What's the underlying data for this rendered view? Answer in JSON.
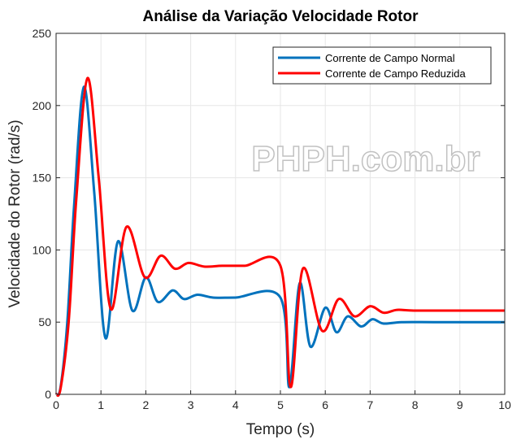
{
  "chart_data": {
    "type": "line",
    "title": "Análise da Variação Velocidade Rotor",
    "xlabel": "Tempo (s)",
    "ylabel": "Velocidade do Rotor (rad/s)",
    "xlim": [
      0,
      10
    ],
    "ylim": [
      0,
      250
    ],
    "xticks": [
      0,
      1,
      2,
      3,
      4,
      5,
      6,
      7,
      8,
      9,
      10
    ],
    "yticks": [
      0,
      50,
      100,
      150,
      200,
      250
    ],
    "grid": true,
    "legend_position": "top-right",
    "watermark": "PHPH.com.br",
    "series": [
      {
        "name": "Corrente de Campo Normal",
        "color": "#0072BD",
        "x": [
          0,
          0.1,
          0.25,
          0.4,
          0.62,
          0.85,
          1.1,
          1.38,
          1.7,
          2.0,
          2.27,
          2.6,
          2.85,
          3.15,
          3.5,
          4.0,
          5.0,
          5.2,
          5.43,
          5.67,
          6.0,
          6.25,
          6.5,
          6.8,
          7.05,
          7.3,
          7.7,
          8.5,
          10
        ],
        "y": [
          0,
          5,
          50,
          130,
          213,
          140,
          39,
          106,
          58,
          81,
          64,
          72,
          66,
          69,
          67,
          67,
          67,
          5,
          77,
          33,
          60,
          43,
          54,
          47,
          52,
          49,
          50,
          50,
          50
        ]
      },
      {
        "name": "Corrente de Campo Reduzida",
        "color": "#FF0000",
        "x": [
          0,
          0.1,
          0.28,
          0.45,
          0.7,
          0.95,
          1.22,
          1.57,
          1.98,
          2.33,
          2.65,
          2.95,
          3.3,
          3.7,
          4.2,
          5.0,
          5.23,
          5.5,
          5.93,
          6.3,
          6.65,
          7.0,
          7.3,
          7.6,
          8.0,
          9.0,
          10
        ],
        "y": [
          0,
          4,
          50,
          135,
          219,
          150,
          59,
          116,
          81,
          96,
          87,
          91,
          88.5,
          89,
          89,
          89,
          5,
          87,
          44,
          66,
          54,
          61,
          56.5,
          58.5,
          58,
          58,
          58
        ]
      }
    ]
  }
}
